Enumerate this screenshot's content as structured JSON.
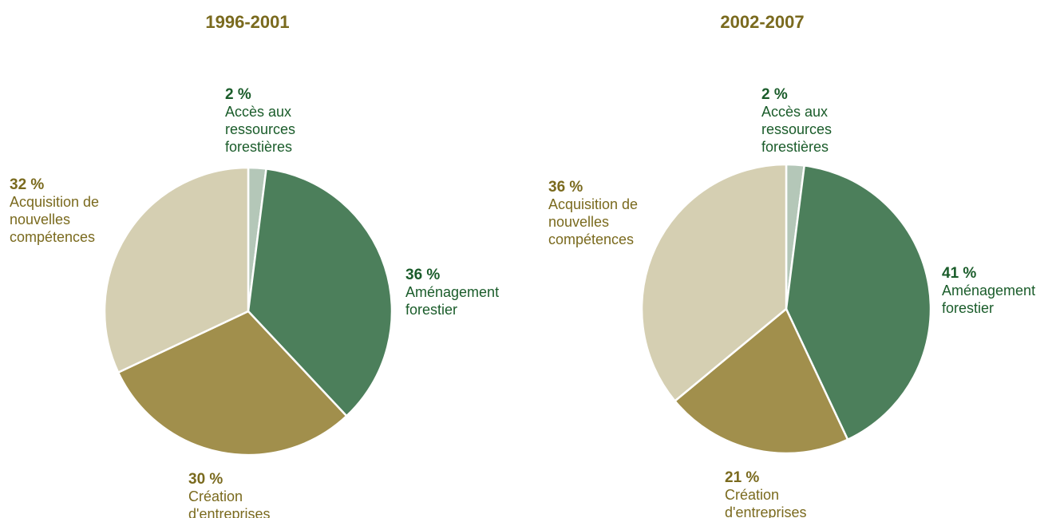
{
  "chart_data": [
    {
      "type": "pie",
      "title": "1996-2001",
      "slices": [
        {
          "label": "Accès aux ressources forestières",
          "lines": [
            "Accès aux",
            "ressources",
            "forestières"
          ],
          "value": 2,
          "pct_label": "2 %",
          "color": "#b4c7b8",
          "label_color": "#1a5c2a"
        },
        {
          "label": "Aménagement forestier",
          "lines": [
            "Aménagement",
            "forestier"
          ],
          "value": 36,
          "pct_label": "36 %",
          "color": "#4c7f5b",
          "label_color": "#1a5c2a"
        },
        {
          "label": "Création d'entreprises",
          "lines": [
            "Création",
            "d'entreprises"
          ],
          "value": 30,
          "pct_label": "30 %",
          "color": "#a18f4c",
          "label_color": "#7a6a1e"
        },
        {
          "label": "Acquisition de nouvelles compétences",
          "lines": [
            "Acquisition de",
            "nouvelles",
            "compétences"
          ],
          "value": 32,
          "pct_label": "32 %",
          "color": "#d5cfb2",
          "label_color": "#7a6a1e"
        }
      ]
    },
    {
      "type": "pie",
      "title": "2002-2007",
      "slices": [
        {
          "label": "Accès aux ressources forestières",
          "lines": [
            "Accès aux",
            "ressources",
            "forestières"
          ],
          "value": 2,
          "pct_label": "2 %",
          "color": "#b4c7b8",
          "label_color": "#1a5c2a"
        },
        {
          "label": "Aménagement forestier",
          "lines": [
            "Aménagement",
            "forestier"
          ],
          "value": 41,
          "pct_label": "41 %",
          "color": "#4c7f5b",
          "label_color": "#1a5c2a"
        },
        {
          "label": "Création d'entreprises",
          "lines": [
            "Création",
            "d'entreprises"
          ],
          "value": 21,
          "pct_label": "21 %",
          "color": "#a18f4c",
          "label_color": "#7a6a1e"
        },
        {
          "label": "Acquisition de nouvelles compétences",
          "lines": [
            "Acquisition de",
            "nouvelles",
            "compétences"
          ],
          "value": 36,
          "pct_label": "36 %",
          "color": "#d5cfb2",
          "label_color": "#7a6a1e"
        }
      ]
    }
  ],
  "colors": {
    "title": "#7a6a1e",
    "text_green": "#1a5c2a",
    "text_olive": "#7a6a1e"
  }
}
